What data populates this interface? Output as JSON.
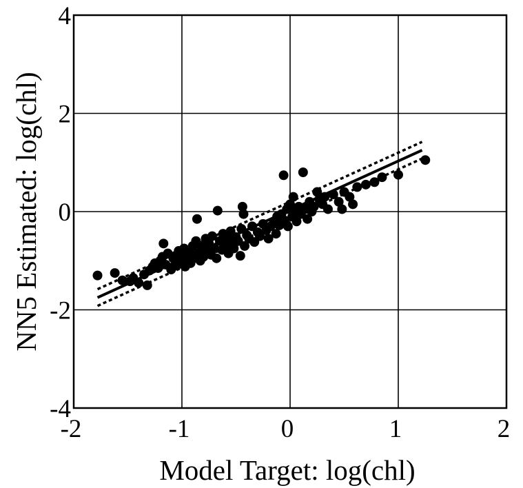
{
  "chart_data": {
    "type": "scatter",
    "xlabel": "Model Target: log(chl)",
    "ylabel": "NN5 Estimated: log(chl)",
    "xlim": [
      -2,
      2
    ],
    "ylim": [
      -4,
      4
    ],
    "x_ticks": [
      "-2",
      "-1",
      "0",
      "1",
      "2"
    ],
    "y_ticks": [
      "-4",
      "-2",
      "0",
      "2",
      "4"
    ],
    "grid": true,
    "series": [
      {
        "marker": "filled-circle",
        "points": [
          [
            -1.78,
            -1.3
          ],
          [
            -1.62,
            -1.25
          ],
          [
            -1.55,
            -1.4
          ],
          [
            -1.48,
            -1.42
          ],
          [
            -1.45,
            -1.35
          ],
          [
            -1.4,
            -1.45
          ],
          [
            -1.35,
            -1.28
          ],
          [
            -1.32,
            -1.5
          ],
          [
            -1.3,
            -1.2
          ],
          [
            -1.27,
            -1.12
          ],
          [
            -1.25,
            -1.05
          ],
          [
            -1.22,
            -1.15
          ],
          [
            -1.2,
            -1.0
          ],
          [
            -1.18,
            -0.92
          ],
          [
            -1.17,
            -0.65
          ],
          [
            -1.15,
            -1.08
          ],
          [
            -1.13,
            -0.85
          ],
          [
            -1.1,
            -1.18
          ],
          [
            -1.08,
            -0.95
          ],
          [
            -1.06,
            -0.9
          ],
          [
            -1.05,
            -1.1
          ],
          [
            -1.03,
            -0.8
          ],
          [
            -1.02,
            -1.02
          ],
          [
            -1.0,
            -0.88
          ],
          [
            -0.98,
            -0.75
          ],
          [
            -0.97,
            -1.12
          ],
          [
            -0.95,
            -0.95
          ],
          [
            -0.93,
            -0.82
          ],
          [
            -0.92,
            -1.05
          ],
          [
            -0.9,
            -0.7
          ],
          [
            -0.88,
            -0.9
          ],
          [
            -0.87,
            -0.6
          ],
          [
            -0.86,
            -0.15
          ],
          [
            -0.85,
            -0.85
          ],
          [
            -0.83,
            -1.0
          ],
          [
            -0.82,
            -0.72
          ],
          [
            -0.8,
            -0.92
          ],
          [
            -0.78,
            -0.55
          ],
          [
            -0.77,
            -0.8
          ],
          [
            -0.75,
            -0.65
          ],
          [
            -0.73,
            -0.88
          ],
          [
            -0.72,
            -0.5
          ],
          [
            -0.7,
            -0.75
          ],
          [
            -0.68,
            -0.95
          ],
          [
            -0.67,
            0.02
          ],
          [
            -0.65,
            -0.6
          ],
          [
            -0.63,
            -0.78
          ],
          [
            -0.62,
            -0.45
          ],
          [
            -0.6,
            -0.7
          ],
          [
            -0.58,
            -0.55
          ],
          [
            -0.57,
            -0.85
          ],
          [
            -0.55,
            -0.4
          ],
          [
            -0.53,
            -0.65
          ],
          [
            -0.52,
            -0.75
          ],
          [
            -0.5,
            -0.52
          ],
          [
            -0.48,
            -0.6
          ],
          [
            -0.46,
            -0.9
          ],
          [
            -0.45,
            -0.35
          ],
          [
            -0.44,
            0.1
          ],
          [
            -0.43,
            -0.05
          ],
          [
            -0.42,
            -0.7
          ],
          [
            -0.4,
            -0.48
          ],
          [
            -0.38,
            -0.55
          ],
          [
            -0.35,
            -0.3
          ],
          [
            -0.33,
            -0.62
          ],
          [
            -0.3,
            -0.42
          ],
          [
            -0.28,
            -0.5
          ],
          [
            -0.25,
            -0.25
          ],
          [
            -0.22,
            -0.38
          ],
          [
            -0.2,
            -0.55
          ],
          [
            -0.18,
            -0.3
          ],
          [
            -0.15,
            -0.2
          ],
          [
            -0.13,
            -0.45
          ],
          [
            -0.12,
            -0.1
          ],
          [
            -0.1,
            -0.28
          ],
          [
            -0.08,
            -0.05
          ],
          [
            -0.06,
            0.74
          ],
          [
            -0.05,
            -0.18
          ],
          [
            -0.03,
            0.05
          ],
          [
            -0.02,
            -0.3
          ],
          [
            0.0,
            0.15
          ],
          [
            0.02,
            -0.1
          ],
          [
            0.03,
            0.3
          ],
          [
            0.05,
            0.0
          ],
          [
            0.06,
            -0.2
          ],
          [
            0.08,
            0.1
          ],
          [
            0.1,
            -0.05
          ],
          [
            0.12,
            0.8
          ],
          [
            0.14,
            0.05
          ],
          [
            0.16,
            -0.15
          ],
          [
            0.18,
            0.2
          ],
          [
            0.2,
            0.0
          ],
          [
            0.22,
            0.1
          ],
          [
            0.25,
            0.4
          ],
          [
            0.27,
            0.25
          ],
          [
            0.3,
            0.15
          ],
          [
            0.32,
            0.3
          ],
          [
            0.35,
            0.05
          ],
          [
            0.4,
            0.35
          ],
          [
            0.45,
            0.2
          ],
          [
            0.48,
            0.05
          ],
          [
            0.5,
            0.4
          ],
          [
            0.55,
            0.3
          ],
          [
            0.58,
            0.15
          ],
          [
            0.62,
            0.5
          ],
          [
            0.7,
            0.55
          ],
          [
            0.78,
            0.6
          ],
          [
            0.85,
            0.7
          ],
          [
            1.0,
            0.75
          ],
          [
            1.25,
            1.05
          ]
        ]
      },
      {
        "style": "solid-line",
        "x": [
          -1.78,
          1.22
        ],
        "y": [
          -1.75,
          1.25
        ]
      },
      {
        "style": "dotted-line",
        "x": [
          -1.78,
          1.22
        ],
        "y": [
          -1.58,
          1.42
        ]
      },
      {
        "style": "dotted-line",
        "x": [
          -1.78,
          1.22
        ],
        "y": [
          -1.92,
          1.08
        ]
      }
    ]
  }
}
